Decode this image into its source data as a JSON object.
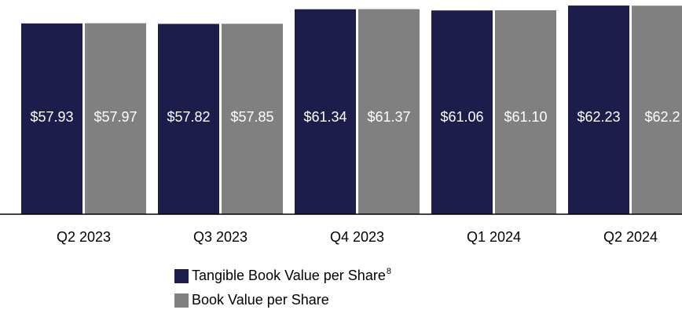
{
  "chart_data": {
    "type": "bar",
    "categories": [
      "Q2 2023",
      "Q3 2023",
      "Q4 2023",
      "Q1 2024",
      "Q2 2024"
    ],
    "series": [
      {
        "name": "Tangible Book Value per Share",
        "footnote": "8",
        "color": "#1d1d4b",
        "values": [
          57.93,
          57.82,
          61.34,
          61.06,
          62.23
        ],
        "value_labels": [
          "$57.93",
          "$57.82",
          "$61.34",
          "$61.06",
          "$62.23"
        ]
      },
      {
        "name": "Book Value per Share",
        "color": "#808080",
        "values": [
          57.97,
          57.85,
          61.37,
          61.1,
          62.2
        ],
        "value_labels": [
          "$57.97",
          "$57.85",
          "$61.37",
          "$61.10",
          "$62.2"
        ]
      }
    ],
    "ylim": [
      12,
      63
    ]
  }
}
